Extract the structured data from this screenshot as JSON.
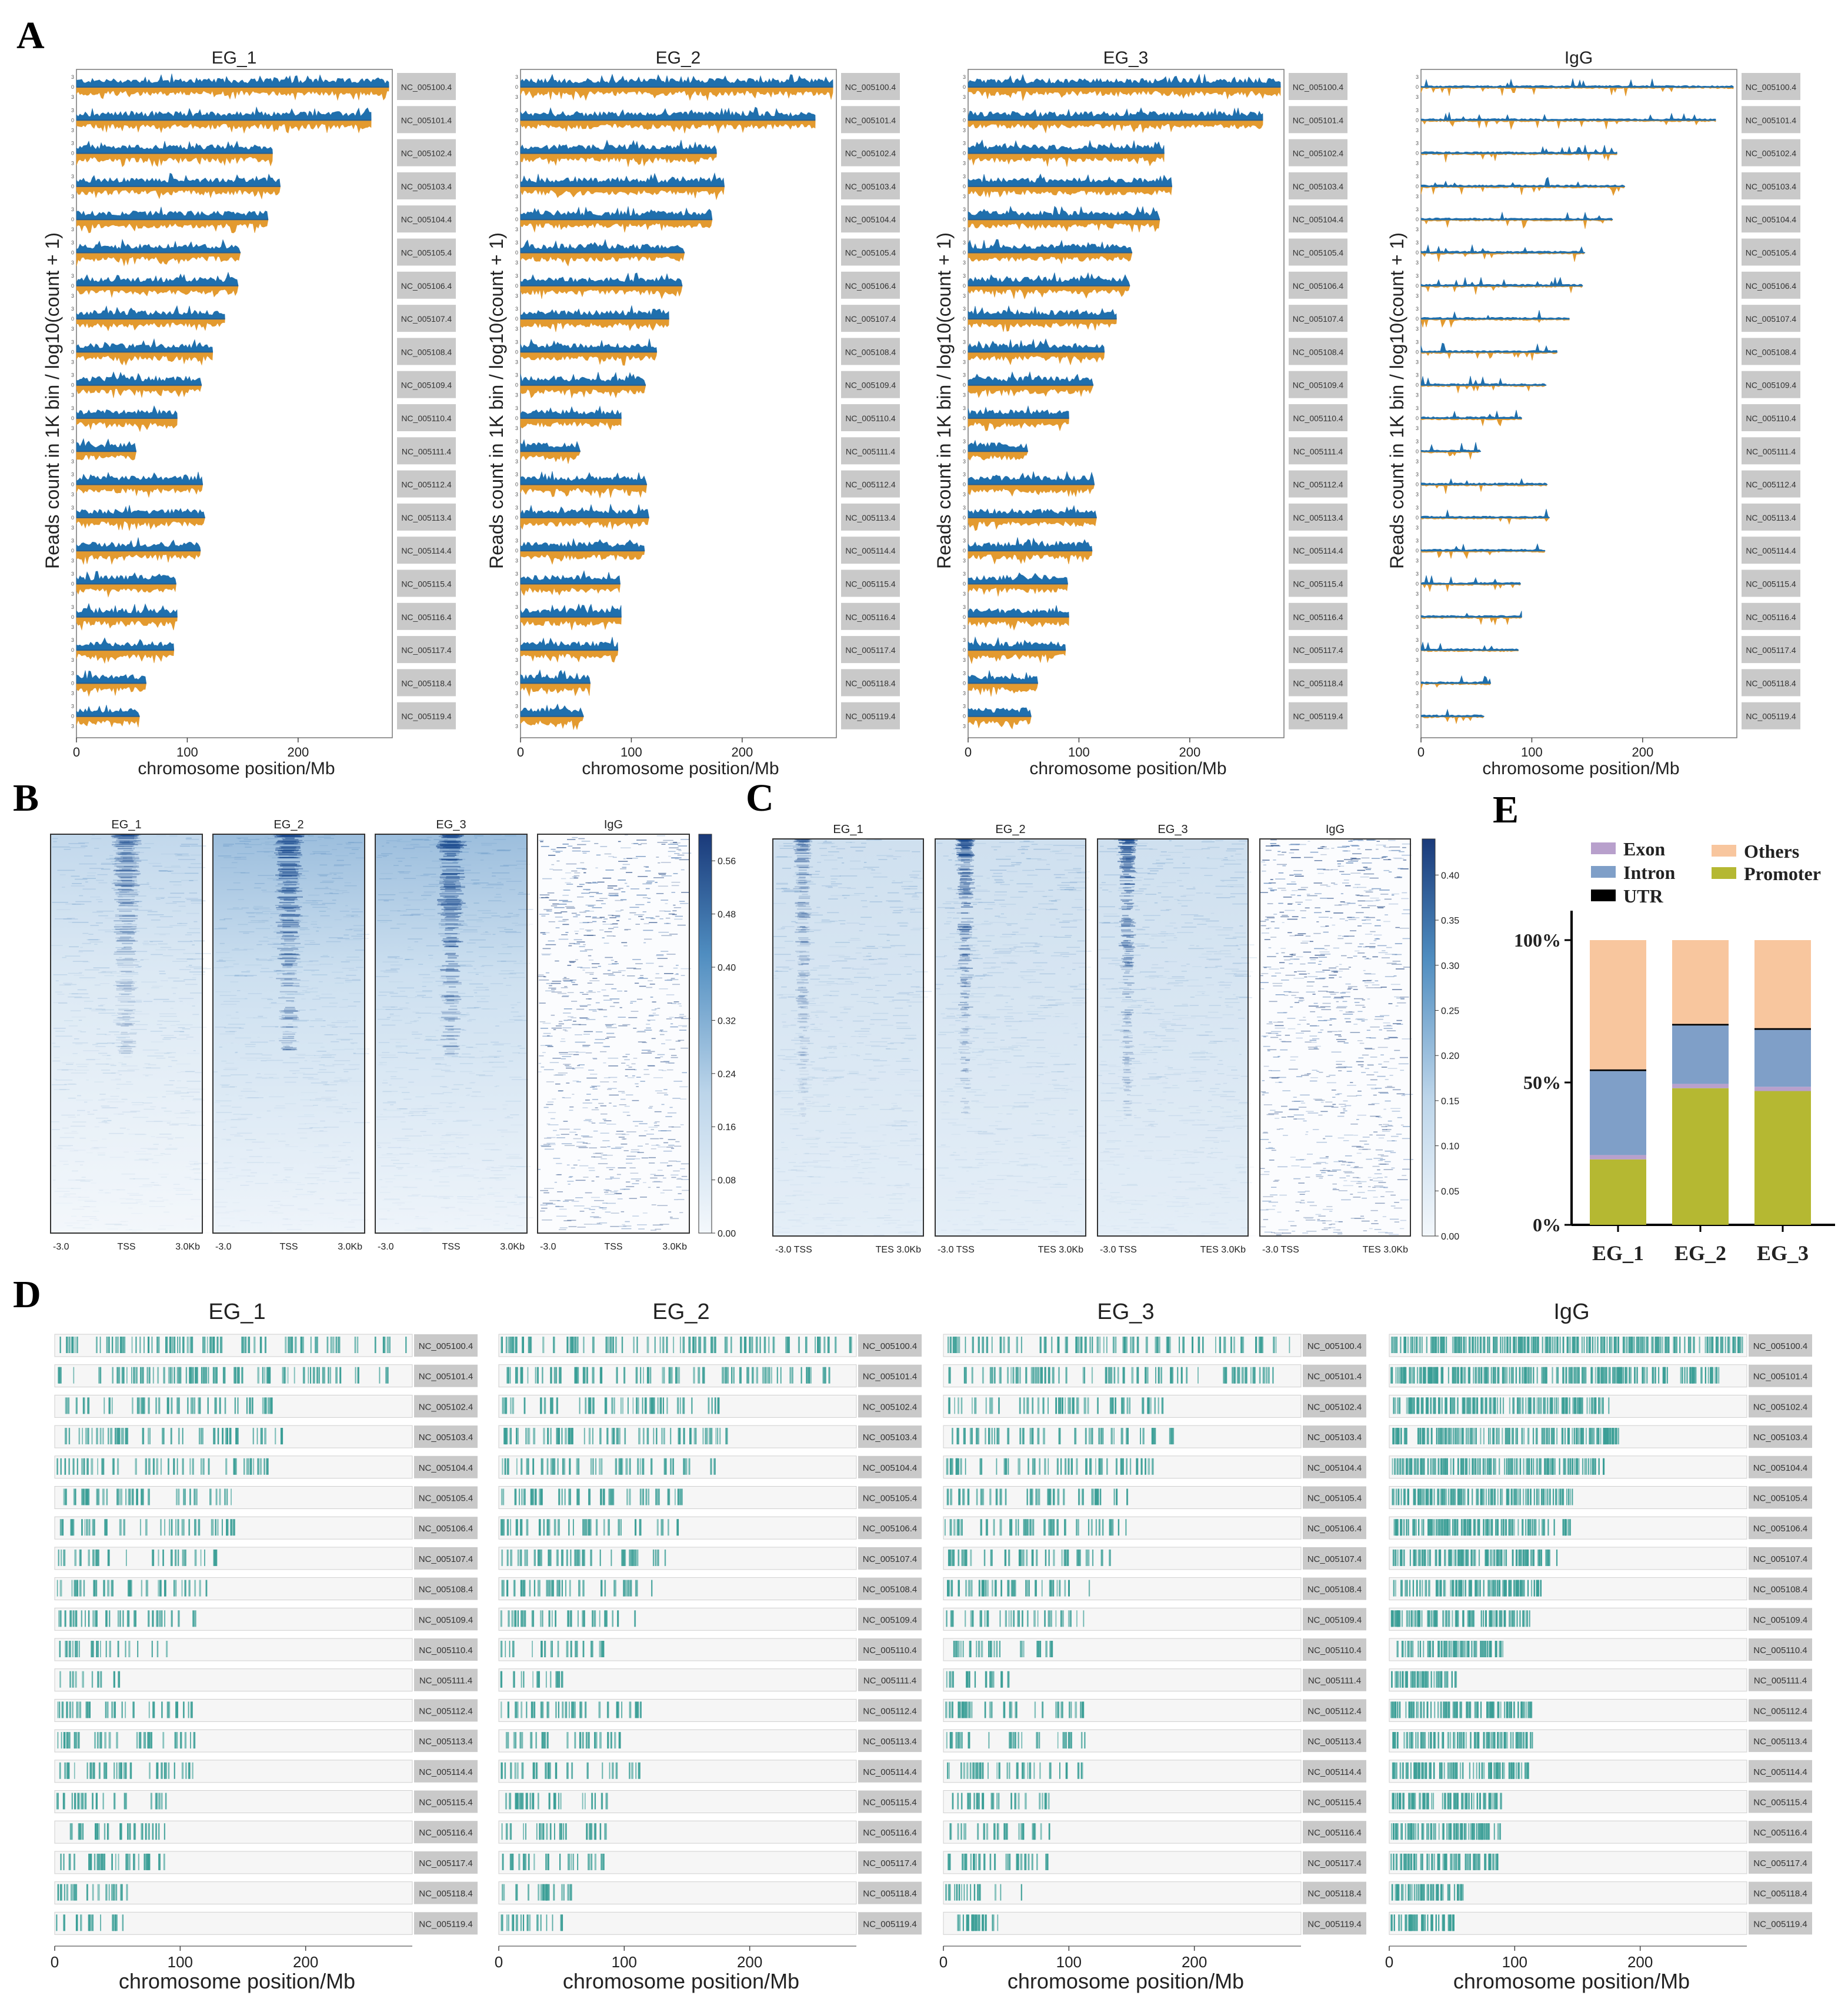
{
  "chart_data": [
    {
      "id": "A",
      "type": "line",
      "panel_label": "A",
      "description": "Genome-wide coverage tracks, forward (blue) and reverse (orange) strands",
      "ylabel": "Reads count in 1K bin / log10(count + 1)",
      "xlabel": "chromosome position/Mb",
      "x_ticks": [
        0,
        100,
        200
      ],
      "xlim": [
        0,
        285
      ],
      "track_y_ticks": [
        "3",
        "0",
        "3"
      ],
      "colors": {
        "forward": "#1f6fad",
        "reverse": "#e39a2f"
      },
      "chromosomes": [
        "NC_005100.4",
        "NC_005101.4",
        "NC_005102.4",
        "NC_005103.4",
        "NC_005104.4",
        "NC_005105.4",
        "NC_005106.4",
        "NC_005107.4",
        "NC_005108.4",
        "NC_005109.4",
        "NC_005110.4",
        "NC_005111.4",
        "NC_005112.4",
        "NC_005113.4",
        "NC_005114.4",
        "NC_005115.4",
        "NC_005116.4",
        "NC_005117.4",
        "NC_005118.4",
        "NC_005119.4"
      ],
      "chromosome_length_mb": [
        282,
        266,
        177,
        184,
        173,
        148,
        146,
        134,
        123,
        113,
        91,
        54,
        114,
        116,
        112,
        90,
        91,
        88,
        63,
        57
      ],
      "samples": [
        {
          "name": "EG_1",
          "signal": "high"
        },
        {
          "name": "EG_2",
          "signal": "high"
        },
        {
          "name": "EG_3",
          "signal": "high"
        },
        {
          "name": "IgG",
          "signal": "low"
        }
      ]
    },
    {
      "id": "B",
      "type": "heatmap",
      "panel_label": "B",
      "description": "Signal around TSS (-3.0 to 3.0Kb)",
      "samples": [
        "EG_1",
        "EG_2",
        "EG_3",
        "IgG"
      ],
      "x_ticks": [
        "-3.0",
        "TSS",
        "3.0Kb"
      ],
      "colorbar_ticks": [
        "0.56",
        "0.48",
        "0.40",
        "0.32",
        "0.24",
        "0.16",
        "0.08",
        "0.00"
      ],
      "colorbar_range": [
        0,
        0.6
      ]
    },
    {
      "id": "C",
      "type": "heatmap",
      "panel_label": "C",
      "description": "Signal over gene bodies (scaled regions, TSS to TES)",
      "samples": [
        "EG_1",
        "EG_2",
        "EG_3",
        "IgG"
      ],
      "x_ticks": [
        "-3.0",
        "TSS",
        "TES 3.0Kb"
      ],
      "colorbar_ticks": [
        "0.40",
        "0.35",
        "0.30",
        "0.25",
        "0.20",
        "0.15",
        "0.10",
        "0.05",
        "0.00"
      ],
      "colorbar_range": [
        0,
        0.44
      ]
    },
    {
      "id": "D",
      "type": "heatmap",
      "panel_label": "D",
      "description": "Peak distribution along chromosomes",
      "xlabel": "chromosome position/Mb",
      "x_ticks": [
        0,
        100,
        200
      ],
      "xlim": [
        0,
        285
      ],
      "color": "#3a9e96",
      "chromosomes": [
        "NC_005100.4",
        "NC_005101.4",
        "NC_005102.4",
        "NC_005103.4",
        "NC_005104.4",
        "NC_005105.4",
        "NC_005106.4",
        "NC_005107.4",
        "NC_005108.4",
        "NC_005109.4",
        "NC_005110.4",
        "NC_005111.4",
        "NC_005112.4",
        "NC_005113.4",
        "NC_005114.4",
        "NC_005115.4",
        "NC_005116.4",
        "NC_005117.4",
        "NC_005118.4",
        "NC_005119.4"
      ],
      "chromosome_length_mb": [
        282,
        266,
        177,
        184,
        173,
        148,
        146,
        134,
        123,
        113,
        91,
        54,
        114,
        116,
        112,
        90,
        91,
        88,
        63,
        57
      ],
      "samples": [
        {
          "name": "EG_1",
          "density": "sparse"
        },
        {
          "name": "EG_2",
          "density": "sparse"
        },
        {
          "name": "EG_3",
          "density": "sparse"
        },
        {
          "name": "IgG",
          "density": "dense"
        }
      ]
    },
    {
      "id": "E",
      "type": "bar",
      "stacked": true,
      "panel_label": "E",
      "description": "Genomic annotation of peaks (percent)",
      "categories": [
        "EG_1",
        "EG_2",
        "EG_3"
      ],
      "y_ticks": [
        "0%",
        "50%",
        "100%"
      ],
      "ylim": [
        0,
        100
      ],
      "legend_position": "top",
      "series": [
        {
          "name": "Promoter",
          "color": "#b5b832",
          "values": [
            23,
            48,
            47
          ]
        },
        {
          "name": "Exon",
          "color": "#b8a0cc",
          "values": [
            1.5,
            1.5,
            1.5
          ]
        },
        {
          "name": "Intron",
          "color": "#7f9fc8",
          "values": [
            29.5,
            20.5,
            20
          ]
        },
        {
          "name": "UTR",
          "color": "#000000",
          "values": [
            0.6,
            0.6,
            0.6
          ]
        },
        {
          "name": "Others",
          "color": "#f8c69e",
          "values": [
            45.4,
            29.4,
            30.9
          ]
        }
      ],
      "legend_order": [
        "Exon",
        "Intron",
        "UTR",
        "Others",
        "Promoter"
      ]
    }
  ]
}
